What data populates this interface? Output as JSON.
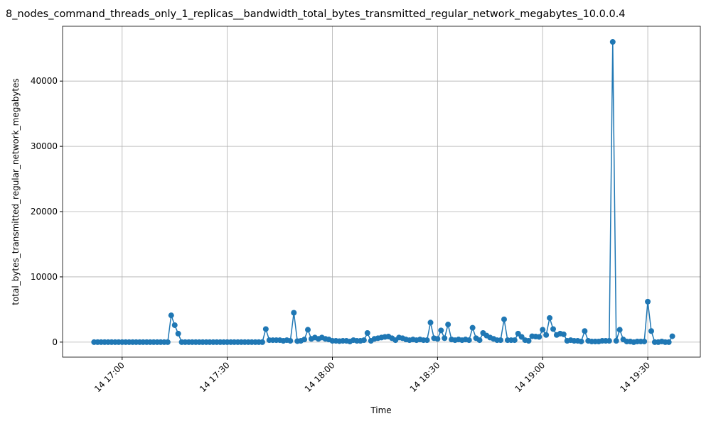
{
  "chart_data": {
    "type": "line",
    "title": "8_nodes_command_threads_only_1_replicas__bandwidth_total_bytes_transmitted_regular_network_megabytes_10.0.0.4",
    "xlabel": "Time",
    "ylabel": "total_bytes_transmitted_regular_network_megabytes",
    "x": [
      "14 16:52",
      "14 16:53",
      "14 16:54",
      "14 16:55",
      "14 16:56",
      "14 16:57",
      "14 16:58",
      "14 16:59",
      "14 17:00",
      "14 17:01",
      "14 17:02",
      "14 17:03",
      "14 17:04",
      "14 17:05",
      "14 17:06",
      "14 17:07",
      "14 17:08",
      "14 17:09",
      "14 17:10",
      "14 17:11",
      "14 17:12",
      "14 17:13",
      "14 17:14",
      "14 17:15",
      "14 17:16",
      "14 17:17",
      "14 17:18",
      "14 17:19",
      "14 17:20",
      "14 17:21",
      "14 17:22",
      "14 17:23",
      "14 17:24",
      "14 17:25",
      "14 17:26",
      "14 17:27",
      "14 17:28",
      "14 17:29",
      "14 17:30",
      "14 17:31",
      "14 17:32",
      "14 17:33",
      "14 17:34",
      "14 17:35",
      "14 17:36",
      "14 17:37",
      "14 17:38",
      "14 17:39",
      "14 17:40",
      "14 17:41",
      "14 17:42",
      "14 17:43",
      "14 17:44",
      "14 17:45",
      "14 17:46",
      "14 17:47",
      "14 17:48",
      "14 17:49",
      "14 17:50",
      "14 17:51",
      "14 17:52",
      "14 17:53",
      "14 17:54",
      "14 17:55",
      "14 17:56",
      "14 17:57",
      "14 17:58",
      "14 17:59",
      "14 18:00",
      "14 18:01",
      "14 18:02",
      "14 18:03",
      "14 18:04",
      "14 18:05",
      "14 18:06",
      "14 18:07",
      "14 18:08",
      "14 18:09",
      "14 18:10",
      "14 18:11",
      "14 18:12",
      "14 18:13",
      "14 18:14",
      "14 18:15",
      "14 18:16",
      "14 18:17",
      "14 18:18",
      "14 18:19",
      "14 18:20",
      "14 18:21",
      "14 18:22",
      "14 18:23",
      "14 18:24",
      "14 18:25",
      "14 18:26",
      "14 18:27",
      "14 18:28",
      "14 18:29",
      "14 18:30",
      "14 18:31",
      "14 18:32",
      "14 18:33",
      "14 18:34",
      "14 18:35",
      "14 18:36",
      "14 18:37",
      "14 18:38",
      "14 18:39",
      "14 18:40",
      "14 18:41",
      "14 18:42",
      "14 18:43",
      "14 18:44",
      "14 18:45",
      "14 18:46",
      "14 18:47",
      "14 18:48",
      "14 18:49",
      "14 18:50",
      "14 18:51",
      "14 18:52",
      "14 18:53",
      "14 18:54",
      "14 18:55",
      "14 18:56",
      "14 18:57",
      "14 18:58",
      "14 18:59",
      "14 19:00",
      "14 19:01",
      "14 19:02",
      "14 19:03",
      "14 19:04",
      "14 19:05",
      "14 19:06",
      "14 19:07",
      "14 19:08",
      "14 19:09",
      "14 19:10",
      "14 19:11",
      "14 19:12",
      "14 19:13",
      "14 19:14",
      "14 19:15",
      "14 19:16",
      "14 19:17",
      "14 19:18",
      "14 19:19",
      "14 19:20",
      "14 19:21",
      "14 19:22",
      "14 19:23",
      "14 19:24",
      "14 19:25",
      "14 19:26",
      "14 19:27",
      "14 19:28",
      "14 19:29",
      "14 19:30",
      "14 19:31",
      "14 19:32",
      "14 19:33",
      "14 19:34",
      "14 19:35",
      "14 19:36",
      "14 19:37"
    ],
    "values": [
      0,
      0,
      0,
      0,
      0,
      0,
      0,
      0,
      0,
      0,
      0,
      0,
      0,
      0,
      0,
      0,
      0,
      0,
      0,
      0,
      0,
      0,
      4100,
      2600,
      1300,
      0,
      0,
      0,
      0,
      0,
      0,
      0,
      0,
      0,
      0,
      0,
      0,
      0,
      0,
      0,
      0,
      0,
      0,
      0,
      0,
      0,
      0,
      0,
      0,
      2000,
      300,
      300,
      300,
      300,
      200,
      300,
      200,
      4500,
      150,
      200,
      400,
      1900,
      500,
      700,
      500,
      700,
      500,
      400,
      200,
      200,
      150,
      200,
      200,
      100,
      300,
      200,
      200,
      300,
      1400,
      200,
      500,
      600,
      700,
      800,
      850,
      600,
      300,
      700,
      600,
      400,
      300,
      400,
      300,
      400,
      300,
      300,
      3000,
      600,
      500,
      1800,
      600,
      2700,
      400,
      300,
      400,
      300,
      400,
      300,
      2200,
      600,
      300,
      1400,
      1000,
      700,
      500,
      300,
      300,
      3500,
      300,
      300,
      300,
      1300,
      800,
      300,
      200,
      900,
      850,
      800,
      1900,
      1100,
      3700,
      2000,
      1100,
      1300,
      1200,
      200,
      300,
      200,
      200,
      100,
      1700,
      200,
      100,
      100,
      100,
      200,
      200,
      200,
      46000,
      200,
      1900,
      400,
      100,
      100,
      0,
      100,
      100,
      100,
      6200,
      1700,
      0,
      0,
      100,
      0,
      0,
      900
    ],
    "color": "#1f77b4",
    "xlim": [
      "14 16:43",
      "14 19:45"
    ],
    "xticks": [
      "14 17:00",
      "14 17:30",
      "14 18:00",
      "14 18:30",
      "14 19:00",
      "14 19:30"
    ],
    "ylim": [
      -2300,
      48400
    ],
    "yticks": [
      0,
      10000,
      20000,
      30000,
      40000
    ],
    "grid": true
  }
}
